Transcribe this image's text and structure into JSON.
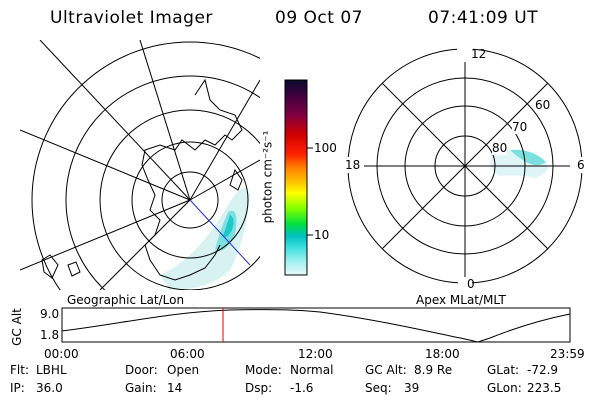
{
  "header": {
    "instrument": "Ultraviolet Imager",
    "date": "09 Oct 07",
    "time": "07:41:09 UT"
  },
  "colorbar": {
    "unit_label": "photon cm⁻²s⁻¹",
    "ticks": [
      "100",
      "10"
    ],
    "scale": "log",
    "colors": [
      "#0a0a2a",
      "#400040",
      "#800040",
      "#c00000",
      "#ff0000",
      "#ff8000",
      "#ffc000",
      "#ffff00",
      "#80ff00",
      "#00e040",
      "#00c0c0",
      "#40e0e0",
      "#a0f0f0",
      "#e0f8f8"
    ]
  },
  "left_panel": {
    "label": "Geographic Lat/Lon"
  },
  "right_panel": {
    "label": "Apex MLat/MLT",
    "mlt_labels": {
      "top": "12",
      "left": "18",
      "right": "6",
      "bottom": "0"
    },
    "lat_labels": [
      "60",
      "70",
      "80"
    ]
  },
  "altitude_plot": {
    "ylabel": "GC Alt",
    "yticks": [
      "9.0",
      "1.8"
    ],
    "xticks": [
      "00:00",
      "06:00",
      "12:00",
      "18:00",
      "23:59"
    ],
    "marker_time": "07:41",
    "marker_color": "#e00000"
  },
  "info": {
    "flt_label": "Flt:",
    "flt_value": "LBHL",
    "ip_label": "IP:",
    "ip_value": "36.0",
    "door_label": "Door:",
    "door_value": "Open",
    "gain_label": "Gain:",
    "gain_value": "14",
    "mode_label": "Mode:",
    "mode_value": "Normal",
    "dsp_label": "Dsp:",
    "dsp_value": "-1.6",
    "gcalt_label": "GC Alt:",
    "gcalt_value": "8.9 Re",
    "seq_label": "Seq:",
    "seq_value": "39",
    "glat_label": "GLat:",
    "glat_value": "-72.9",
    "glon_label": "GLon:",
    "glon_value": "223.5"
  }
}
